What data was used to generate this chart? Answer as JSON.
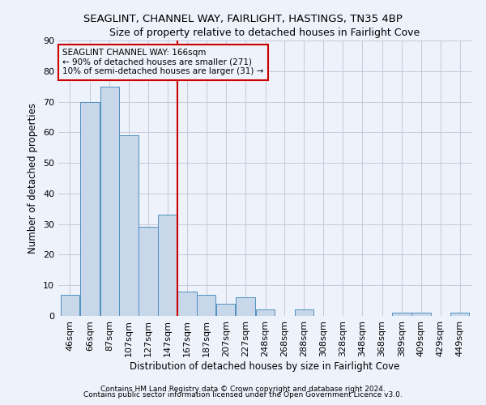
{
  "title1": "SEAGLINT, CHANNEL WAY, FAIRLIGHT, HASTINGS, TN35 4BP",
  "title2": "Size of property relative to detached houses in Fairlight Cove",
  "xlabel": "Distribution of detached houses by size in Fairlight Cove",
  "ylabel": "Number of detached properties",
  "footnote1": "Contains HM Land Registry data © Crown copyright and database right 2024.",
  "footnote2": "Contains public sector information licensed under the Open Government Licence v3.0.",
  "annotation_title": "SEAGLINT CHANNEL WAY: 166sqm",
  "annotation_line1": "← 90% of detached houses are smaller (271)",
  "annotation_line2": "10% of semi-detached houses are larger (31) →",
  "bar_categories": [
    "46sqm",
    "66sqm",
    "87sqm",
    "107sqm",
    "127sqm",
    "147sqm",
    "167sqm",
    "187sqm",
    "207sqm",
    "227sqm",
    "248sqm",
    "268sqm",
    "288sqm",
    "308sqm",
    "328sqm",
    "348sqm",
    "368sqm",
    "389sqm",
    "409sqm",
    "429sqm",
    "449sqm"
  ],
  "bar_edges": [
    46,
    66,
    87,
    107,
    127,
    147,
    167,
    187,
    207,
    227,
    248,
    268,
    288,
    308,
    328,
    348,
    368,
    389,
    409,
    429,
    449
  ],
  "bar_widths": [
    20,
    21,
    20,
    20,
    20,
    20,
    20,
    20,
    20,
    21,
    20,
    20,
    20,
    20,
    20,
    20,
    21,
    20,
    20,
    20,
    20
  ],
  "bar_values": [
    7,
    70,
    75,
    59,
    29,
    33,
    8,
    7,
    4,
    6,
    2,
    0,
    2,
    0,
    0,
    0,
    0,
    1,
    1,
    0,
    1
  ],
  "bar_color": "#c8d8ea",
  "bar_edge_color": "#5090c0",
  "vline_color": "#cc0000",
  "background_color": "#eef2fb",
  "grid_color": "#c8c8d8",
  "ylim": [
    0,
    90
  ],
  "yticks": [
    0,
    10,
    20,
    30,
    40,
    50,
    60,
    70,
    80,
    90
  ],
  "title1_fontsize": 9.5,
  "title2_fontsize": 9.0,
  "xlabel_fontsize": 8.5,
  "ylabel_fontsize": 8.5,
  "annot_fontsize": 7.5,
  "tick_fontsize": 8.0,
  "footnote_fontsize": 6.5
}
